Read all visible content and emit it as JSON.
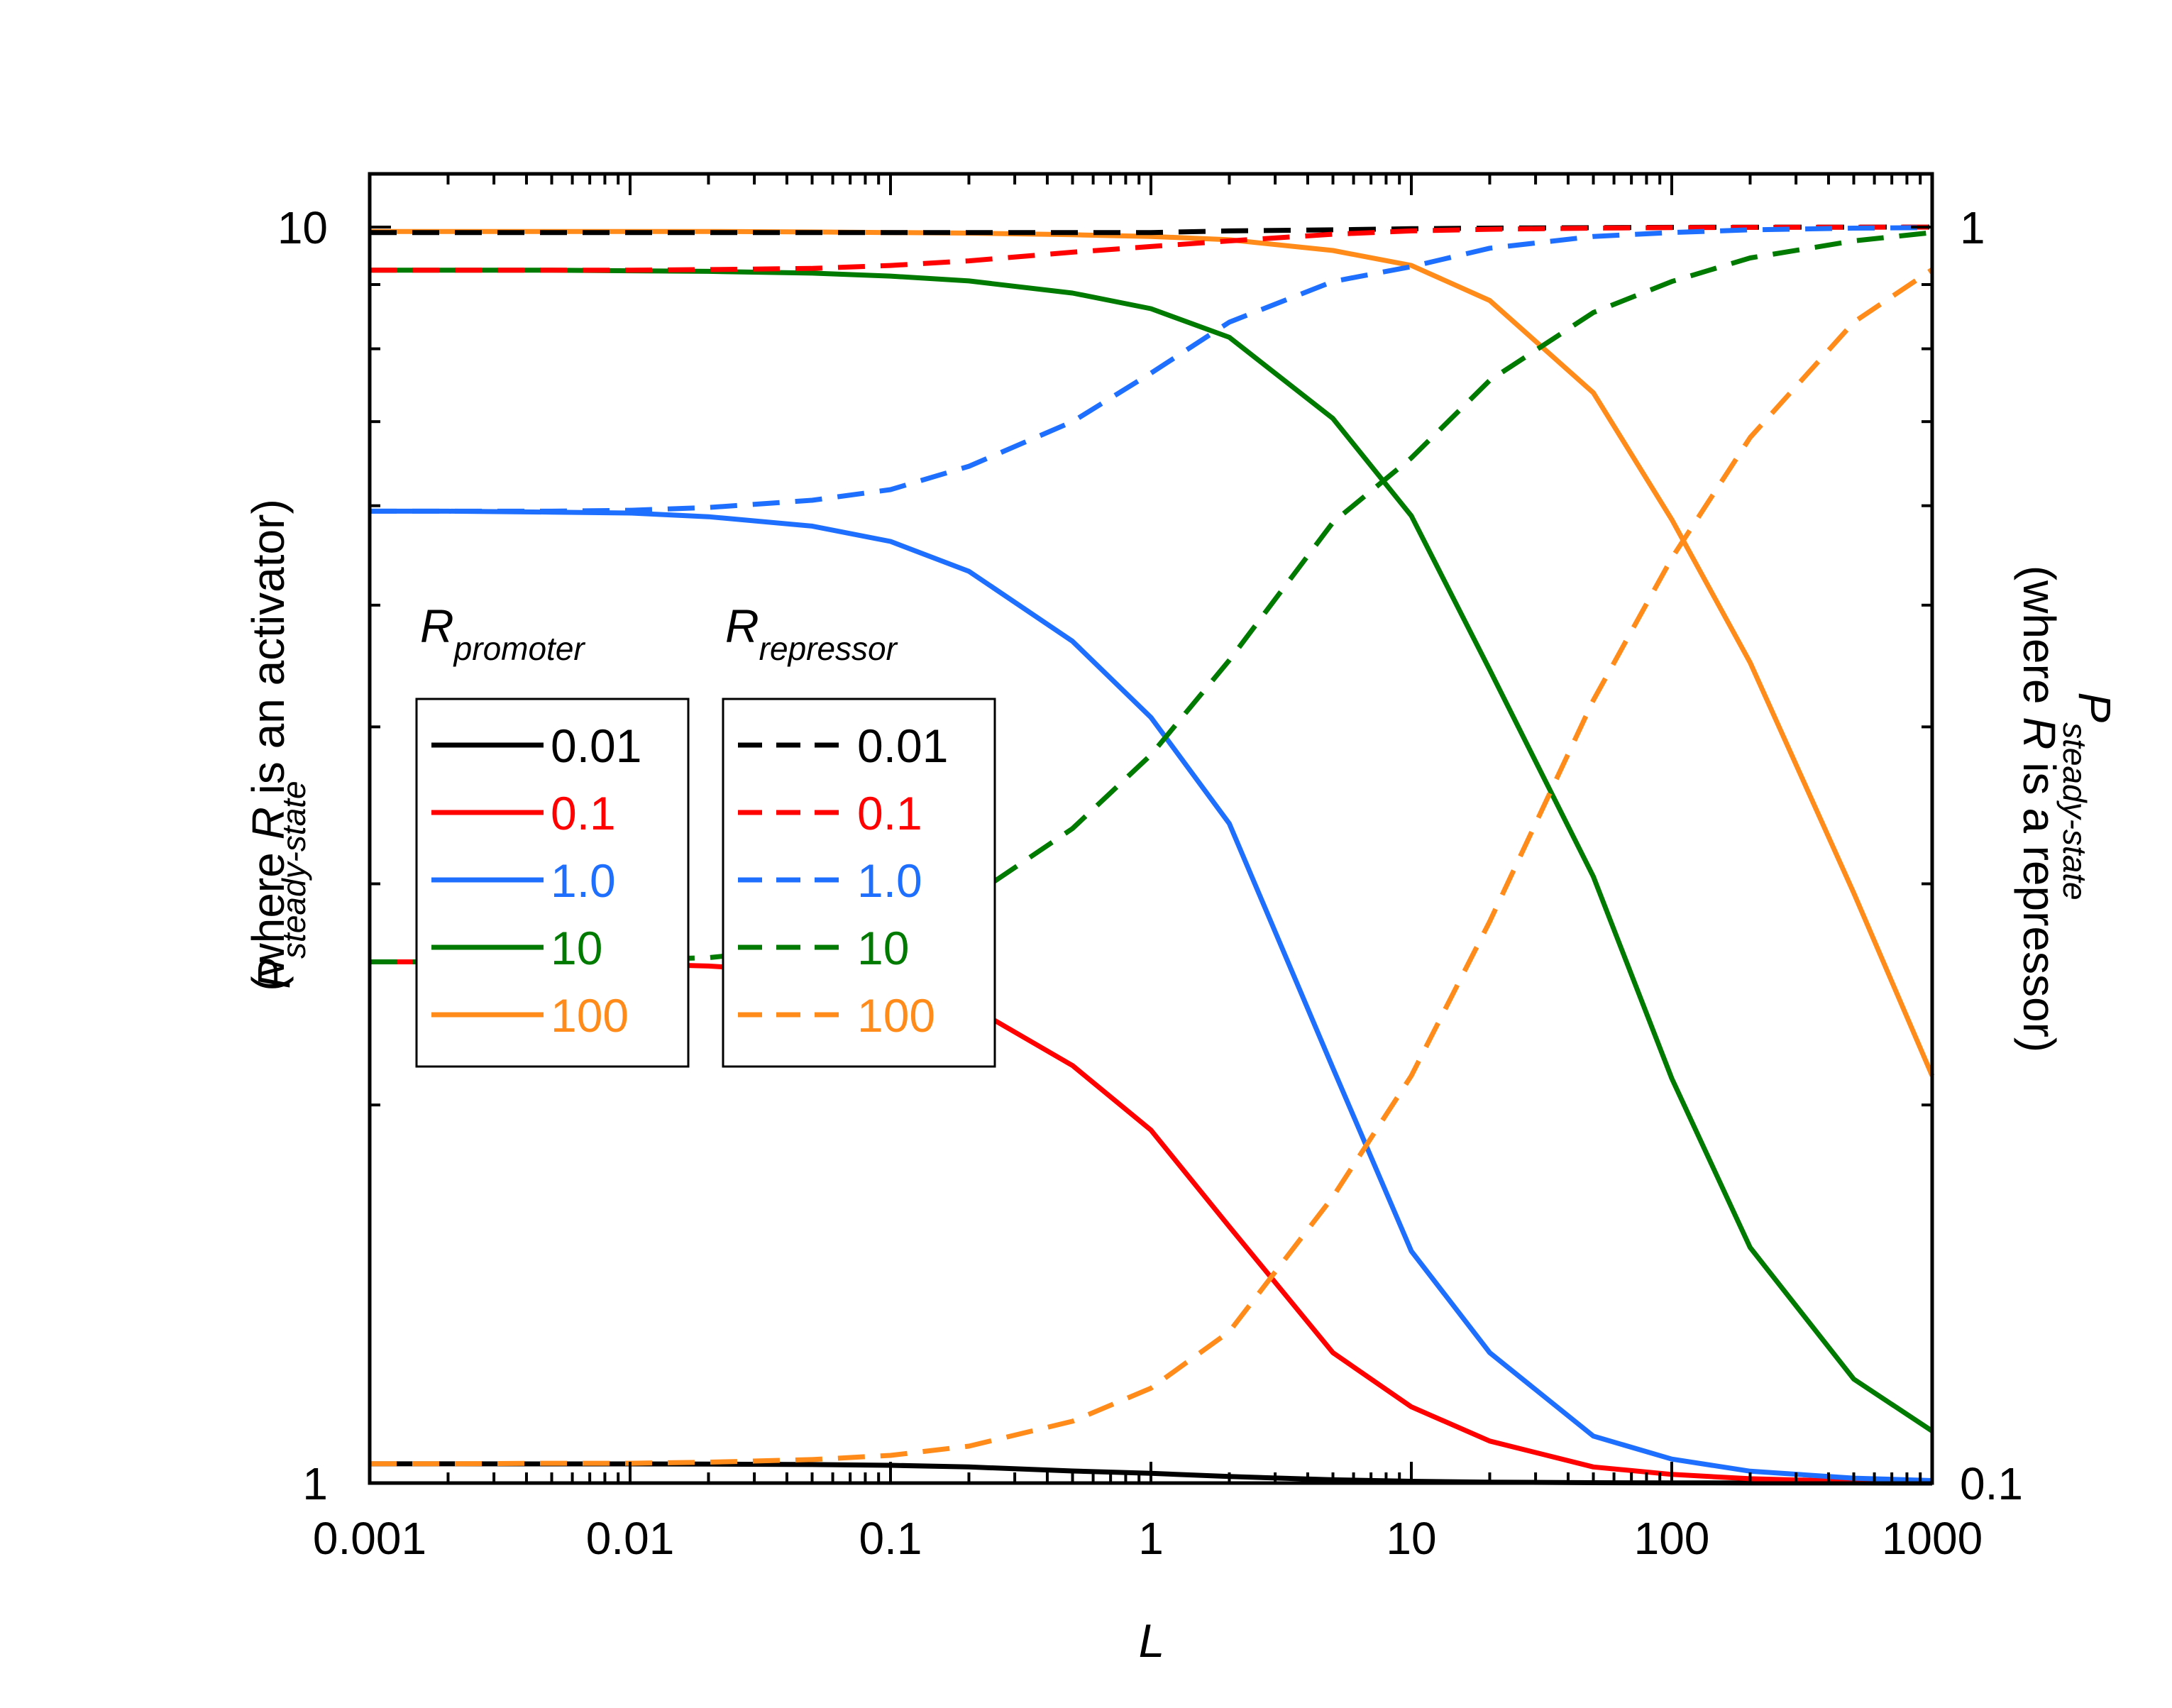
{
  "chart_data": {
    "type": "line",
    "title": "",
    "x_scale": "log",
    "y_scale": "log",
    "xlim": [
      0.001,
      1000
    ],
    "ylim_left": [
      1,
      10
    ],
    "ylim_right": [
      0.1,
      1
    ],
    "xlabel": "L",
    "ylabel_left": {
      "main": "P",
      "sub": "steady-state",
      "paren_pre": "(where ",
      "paren_var": "R",
      "paren_post": " is an activator)"
    },
    "ylabel_right": {
      "main": "P",
      "sub": "steady-state",
      "paren_pre": "(where ",
      "paren_var": "R",
      "paren_post": " is a repressor)"
    },
    "x_tick_labels": [
      "0.001",
      "0.01",
      "0.1",
      "1",
      "10",
      "100",
      "1000"
    ],
    "x_ticks": [
      0.001,
      0.01,
      0.1,
      1,
      10,
      100,
      1000
    ],
    "y_left_tick_labels": [
      "10",
      "1"
    ],
    "y_left_ticks": [
      10,
      1
    ],
    "y_right_tick_labels": [
      "1",
      "0.1"
    ],
    "y_right_ticks": [
      1,
      0.1
    ],
    "x": [
      0.001,
      0.002,
      0.005,
      0.01,
      0.02,
      0.05,
      0.1,
      0.2,
      0.5,
      1,
      2,
      5,
      10,
      20,
      50,
      100,
      200,
      500,
      1000
    ],
    "legend": {
      "promoter_title": "R",
      "promoter_sub": "promoter",
      "repressor_title": "R",
      "repressor_sub": "repressor"
    },
    "series": [
      {
        "name": "0.01",
        "group": "promoter",
        "axis": "left",
        "color": "#000000",
        "dash": "solid",
        "values": [
          1.0359,
          1.0359,
          1.0358,
          1.0357,
          1.0354,
          1.0345,
          1.033,
          1.03,
          1.0224,
          1.018,
          1.012,
          1.006,
          1.0033,
          1.0017,
          1.0007,
          1.00036,
          1.00018,
          1.00007,
          1.00004
        ]
      },
      {
        "name": "0.1",
        "group": "promoter",
        "axis": "left",
        "color": "#ff0000",
        "dash": "solid",
        "values": [
          2.6,
          2.6,
          2.6,
          2.59,
          2.58,
          2.55,
          2.5,
          2.4,
          2.15,
          1.91,
          1.6,
          1.27,
          1.15,
          1.08,
          1.03,
          1.016,
          1.008,
          1.003,
          1.0016
        ]
      },
      {
        "name": "1.0",
        "group": "promoter",
        "axis": "left",
        "color": "#1f6fff",
        "dash": "solid",
        "values": [
          5.94,
          5.94,
          5.93,
          5.92,
          5.88,
          5.78,
          5.62,
          5.32,
          4.68,
          4.07,
          3.35,
          2.14,
          1.53,
          1.27,
          1.09,
          1.045,
          1.022,
          1.009,
          1.0045
        ]
      },
      {
        "name": "10",
        "group": "promoter",
        "axis": "left",
        "color": "#007a00",
        "dash": "solid",
        "values": [
          9.24,
          9.24,
          9.24,
          9.23,
          9.22,
          9.19,
          9.14,
          9.06,
          8.86,
          8.61,
          8.17,
          7.04,
          5.89,
          4.44,
          3.04,
          2.1,
          1.54,
          1.21,
          1.1
        ]
      },
      {
        "name": "100",
        "group": "promoter",
        "axis": "left",
        "color": "#ff8c1a",
        "dash": "solid",
        "values": [
          9.92,
          9.92,
          9.92,
          9.92,
          9.92,
          9.91,
          9.9,
          9.89,
          9.86,
          9.83,
          9.77,
          9.58,
          9.32,
          8.74,
          7.38,
          5.85,
          4.5,
          2.95,
          2.11
        ]
      },
      {
        "name": "0.01",
        "group": "repressor",
        "axis": "right",
        "color": "#000000",
        "dash": "dashed",
        "values": [
          0.99,
          0.99,
          0.99,
          0.99,
          0.99,
          0.99,
          0.99,
          0.99,
          0.99,
          0.99,
          0.993,
          0.995,
          0.997,
          0.998,
          0.999,
          0.9995,
          0.9998,
          0.9999,
          1.0
        ]
      },
      {
        "name": "0.1",
        "group": "repressor",
        "axis": "right",
        "color": "#ff0000",
        "dash": "dashed",
        "values": [
          0.924,
          0.924,
          0.924,
          0.924,
          0.925,
          0.927,
          0.932,
          0.94,
          0.955,
          0.965,
          0.975,
          0.987,
          0.993,
          0.996,
          0.998,
          0.999,
          0.9995,
          0.9998,
          0.9999
        ]
      },
      {
        "name": "1.0",
        "group": "repressor",
        "axis": "right",
        "color": "#1f6fff",
        "dash": "dashed",
        "values": [
          0.594,
          0.594,
          0.594,
          0.595,
          0.598,
          0.606,
          0.618,
          0.645,
          0.7,
          0.765,
          0.84,
          0.905,
          0.93,
          0.962,
          0.983,
          0.99,
          0.995,
          0.998,
          0.999
        ]
      },
      {
        "name": "10",
        "group": "repressor",
        "axis": "right",
        "color": "#007a00",
        "dash": "dashed",
        "values": [
          0.26,
          0.26,
          0.26,
          0.261,
          0.262,
          0.267,
          0.276,
          0.292,
          0.332,
          0.38,
          0.452,
          0.582,
          0.655,
          0.755,
          0.855,
          0.905,
          0.945,
          0.975,
          0.99
        ]
      },
      {
        "name": "100",
        "group": "repressor",
        "axis": "right",
        "color": "#ff8c1a",
        "dash": "dashed",
        "values": [
          0.1036,
          0.1036,
          0.1037,
          0.1037,
          0.1039,
          0.1044,
          0.1052,
          0.107,
          0.112,
          0.119,
          0.132,
          0.169,
          0.211,
          0.28,
          0.42,
          0.545,
          0.68,
          0.84,
          0.925
        ]
      }
    ]
  }
}
